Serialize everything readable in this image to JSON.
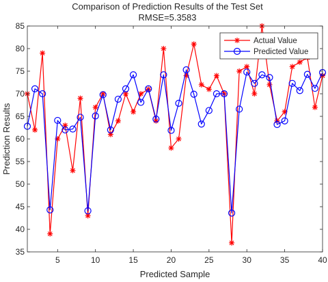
{
  "chart_data": {
    "type": "line",
    "title": "Comparison of Prediction Results of the Test Set",
    "subtitle": "RMSE=5.3583",
    "xlabel": "Predicted Sample",
    "ylabel": "Prediction Results",
    "xlim": [
      1,
      40
    ],
    "ylim": [
      35,
      85
    ],
    "xticks": [
      5,
      10,
      15,
      20,
      25,
      30,
      35,
      40
    ],
    "yticks": [
      35,
      40,
      45,
      50,
      55,
      60,
      65,
      70,
      75,
      80,
      85
    ],
    "grid": false,
    "legend_position": "top-right",
    "x": [
      1,
      2,
      3,
      4,
      5,
      6,
      7,
      8,
      9,
      10,
      11,
      12,
      13,
      14,
      15,
      16,
      17,
      18,
      19,
      20,
      21,
      22,
      23,
      24,
      25,
      26,
      27,
      28,
      29,
      30,
      31,
      32,
      33,
      34,
      35,
      36,
      37,
      38,
      39,
      40
    ],
    "series": [
      {
        "name": "Actual Value",
        "color": "#ff0000",
        "marker": "asterisk",
        "values": [
          70,
          62,
          79,
          39,
          60,
          63,
          53,
          69,
          43,
          67,
          70,
          61,
          64,
          70,
          66,
          70,
          71,
          64,
          80,
          58,
          60,
          74,
          81,
          72,
          71,
          74,
          70,
          37,
          75,
          76,
          70,
          85,
          72,
          64,
          66,
          76,
          77,
          78,
          67,
          74
        ]
      },
      {
        "name": "Predicted Value",
        "color": "#0000ff",
        "marker": "circle",
        "values": [
          62.8,
          71.1,
          70.0,
          44.3,
          64.1,
          62.0,
          62.2,
          64.8,
          44.1,
          65.1,
          69.8,
          62.0,
          68.8,
          71.1,
          74.2,
          68.1,
          71.1,
          64.4,
          74.2,
          61.9,
          67.9,
          75.3,
          69.9,
          63.3,
          66.3,
          70.0,
          70.0,
          43.6,
          66.6,
          74.8,
          72.3,
          74.2,
          73.6,
          63.2,
          64.0,
          72.3,
          70.7,
          74.3,
          71.2,
          74.7
        ]
      }
    ]
  }
}
